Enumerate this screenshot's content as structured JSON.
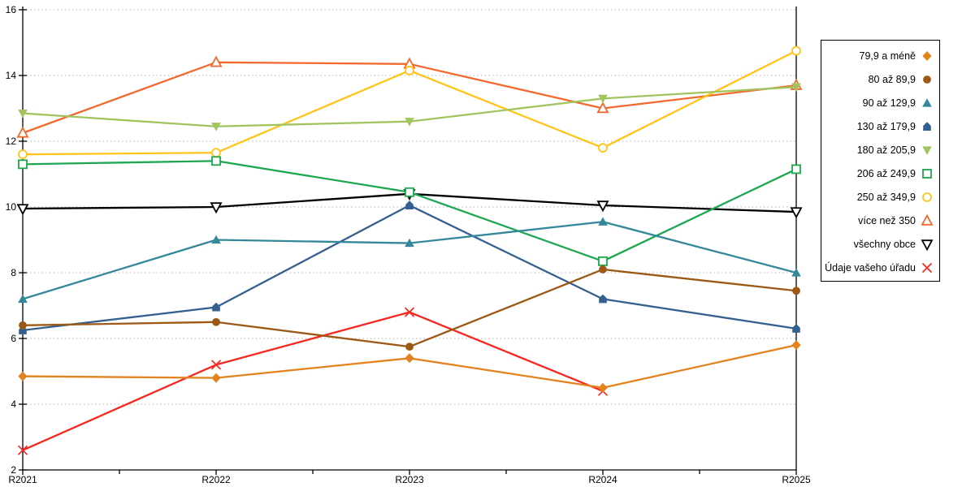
{
  "chart_data": {
    "type": "line",
    "title": "",
    "xlabel": "",
    "ylabel": "",
    "categories": [
      "R2021",
      "R2022",
      "R2023",
      "R2024",
      "R2025"
    ],
    "ylim": [
      2,
      16
    ],
    "yticks": [
      2,
      4,
      6,
      8,
      10,
      12,
      14,
      16
    ],
    "grid": "horizontal-dotted",
    "legend_position": "right",
    "axis_color": "#000000",
    "gridline_color": "#c0c0c0",
    "series": [
      {
        "name": "79,9 a méně",
        "marker": "diamond-filled",
        "color": "#E2831D",
        "values": [
          4.85,
          4.8,
          5.4,
          4.5,
          5.8
        ]
      },
      {
        "name": "80 až 89,9",
        "marker": "circle-filled",
        "color": "#9C5815",
        "values": [
          6.4,
          6.5,
          5.75,
          8.1,
          7.45
        ]
      },
      {
        "name": "90 až 129,9",
        "marker": "triangle-up-filled",
        "color": "#35879B",
        "values": [
          7.2,
          9.0,
          8.9,
          9.55,
          8.0
        ]
      },
      {
        "name": "130 až 179,9",
        "marker": "pentagon-filled",
        "color": "#34608F",
        "values": [
          6.25,
          6.95,
          10.05,
          7.2,
          6.3
        ]
      },
      {
        "name": "180 až 205,9",
        "marker": "triangle-down-filled",
        "color": "#A2C45F",
        "values": [
          12.85,
          12.45,
          12.6,
          13.3,
          13.65
        ]
      },
      {
        "name": "206 až 249,9",
        "marker": "square-open",
        "color": "#1CA750",
        "values": [
          11.3,
          11.4,
          10.45,
          8.35,
          11.15
        ]
      },
      {
        "name": "250 až 349,9",
        "marker": "circle-open",
        "color": "#FFC41A",
        "values": [
          11.6,
          11.65,
          14.15,
          11.8,
          14.75
        ]
      },
      {
        "name": "více než 350",
        "marker": "triangle-up-open",
        "color": "#F2692E",
        "values": [
          12.25,
          14.4,
          14.35,
          13.0,
          13.7
        ]
      },
      {
        "name": "všechny obce",
        "marker": "triangle-down-open",
        "color": "#000000",
        "values": [
          9.95,
          10.0,
          10.4,
          10.05,
          9.85
        ]
      },
      {
        "name": "Údaje vašeho úřadu",
        "marker": "x",
        "color": "#F5271F",
        "values": [
          2.6,
          5.2,
          6.8,
          4.4,
          null
        ]
      }
    ]
  }
}
